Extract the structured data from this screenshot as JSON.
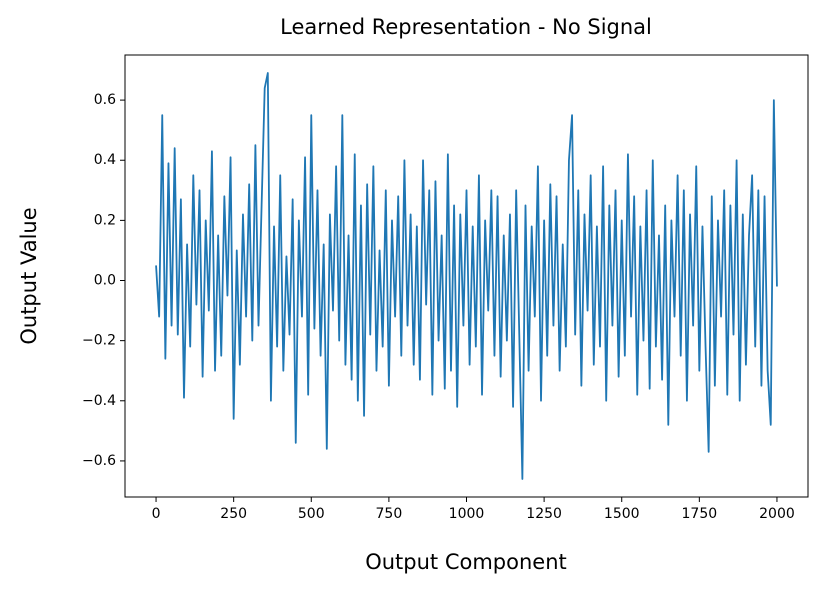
{
  "chart_data": {
    "type": "line",
    "title": "Learned Representation - No Signal",
    "x_label": "Output Component",
    "y_label": "Output Value",
    "color": "#1f77b4",
    "xlim": [
      -100,
      2100
    ],
    "ylim": [
      -0.72,
      0.75
    ],
    "xticks": [
      0,
      250,
      500,
      750,
      1000,
      1250,
      1500,
      1750,
      2000
    ],
    "yticks": [
      {
        "value": -0.6,
        "label": "−0.6"
      },
      {
        "value": -0.4,
        "label": "−0.4"
      },
      {
        "value": -0.2,
        "label": "−0.2"
      },
      {
        "value": 0,
        "label": "0.0"
      },
      0.2,
      0.4,
      0.6
    ],
    "x": [
      0,
      10,
      20,
      30,
      40,
      50,
      60,
      70,
      80,
      90,
      100,
      110,
      120,
      130,
      140,
      150,
      160,
      170,
      180,
      190,
      200,
      210,
      220,
      230,
      240,
      250,
      260,
      270,
      280,
      290,
      300,
      310,
      320,
      330,
      340,
      350,
      360,
      370,
      380,
      390,
      400,
      410,
      420,
      430,
      440,
      450,
      460,
      470,
      480,
      490,
      500,
      510,
      520,
      530,
      540,
      550,
      560,
      570,
      580,
      590,
      600,
      610,
      620,
      630,
      640,
      650,
      660,
      670,
      680,
      690,
      700,
      710,
      720,
      730,
      740,
      750,
      760,
      770,
      780,
      790,
      800,
      810,
      820,
      830,
      840,
      850,
      860,
      870,
      880,
      890,
      900,
      910,
      920,
      930,
      940,
      950,
      960,
      970,
      980,
      990,
      1000,
      1010,
      1020,
      1030,
      1040,
      1050,
      1060,
      1070,
      1080,
      1090,
      1100,
      1110,
      1120,
      1130,
      1140,
      1150,
      1160,
      1170,
      1180,
      1190,
      1200,
      1210,
      1220,
      1230,
      1240,
      1250,
      1260,
      1270,
      1280,
      1290,
      1300,
      1310,
      1320,
      1330,
      1340,
      1350,
      1360,
      1370,
      1380,
      1390,
      1400,
      1410,
      1420,
      1430,
      1440,
      1450,
      1460,
      1470,
      1480,
      1490,
      1500,
      1510,
      1520,
      1530,
      1540,
      1550,
      1560,
      1570,
      1580,
      1590,
      1600,
      1610,
      1620,
      1630,
      1640,
      1650,
      1660,
      1670,
      1680,
      1690,
      1700,
      1710,
      1720,
      1730,
      1740,
      1750,
      1760,
      1770,
      1780,
      1790,
      1800,
      1810,
      1820,
      1830,
      1840,
      1850,
      1860,
      1870,
      1880,
      1890,
      1900,
      1910,
      1920,
      1930,
      1940,
      1950,
      1960,
      1970,
      1980,
      1990,
      2000
    ],
    "values": [
      0.05,
      -0.12,
      0.55,
      -0.26,
      0.39,
      -0.15,
      0.44,
      -0.18,
      0.27,
      -0.39,
      0.12,
      -0.22,
      0.35,
      -0.08,
      0.3,
      -0.32,
      0.2,
      -0.1,
      0.43,
      -0.3,
      0.15,
      -0.25,
      0.28,
      -0.05,
      0.41,
      -0.46,
      0.1,
      -0.28,
      0.22,
      -0.12,
      0.32,
      -0.2,
      0.45,
      -0.15,
      0.25,
      0.64,
      0.69,
      -0.4,
      0.18,
      -0.22,
      0.35,
      -0.3,
      0.08,
      -0.18,
      0.27,
      -0.54,
      0.2,
      -0.12,
      0.41,
      -0.38,
      0.55,
      -0.16,
      0.3,
      -0.25,
      0.12,
      -0.56,
      0.22,
      -0.1,
      0.38,
      -0.2,
      0.55,
      -0.28,
      0.15,
      -0.33,
      0.42,
      -0.4,
      0.25,
      -0.45,
      0.32,
      -0.18,
      0.38,
      -0.3,
      0.1,
      -0.22,
      0.3,
      -0.35,
      0.2,
      -0.12,
      0.28,
      -0.25,
      0.4,
      -0.15,
      0.22,
      -0.28,
      0.18,
      -0.33,
      0.4,
      -0.08,
      0.3,
      -0.38,
      0.33,
      -0.2,
      0.15,
      -0.36,
      0.42,
      -0.3,
      0.25,
      -0.42,
      0.22,
      -0.15,
      0.3,
      -0.28,
      0.18,
      -0.22,
      0.35,
      -0.38,
      0.2,
      -0.1,
      0.3,
      -0.25,
      0.28,
      -0.32,
      0.15,
      -0.2,
      0.22,
      -0.42,
      0.3,
      -0.18,
      -0.66,
      0.25,
      -0.3,
      0.18,
      -0.12,
      0.38,
      -0.4,
      0.2,
      -0.25,
      0.32,
      -0.15,
      0.28,
      -0.3,
      0.12,
      -0.22,
      0.4,
      0.55,
      -0.18,
      0.3,
      -0.35,
      0.22,
      -0.1,
      0.35,
      -0.28,
      0.18,
      -0.22,
      0.38,
      -0.4,
      0.25,
      -0.15,
      0.3,
      -0.32,
      0.2,
      -0.25,
      0.42,
      -0.12,
      0.28,
      -0.38,
      0.18,
      -0.2,
      0.3,
      -0.36,
      0.4,
      -0.22,
      0.15,
      -0.33,
      0.25,
      -0.48,
      0.2,
      -0.12,
      0.35,
      -0.25,
      0.3,
      -0.4,
      0.22,
      -0.15,
      0.38,
      -0.3,
      0.18,
      -0.22,
      -0.57,
      0.28,
      -0.35,
      0.2,
      -0.12,
      0.3,
      -0.38,
      0.25,
      -0.18,
      0.4,
      -0.4,
      0.22,
      -0.28,
      0.15,
      0.35,
      -0.22,
      0.3,
      -0.35,
      0.28,
      -0.3,
      -0.48,
      0.6,
      -0.02
    ]
  }
}
